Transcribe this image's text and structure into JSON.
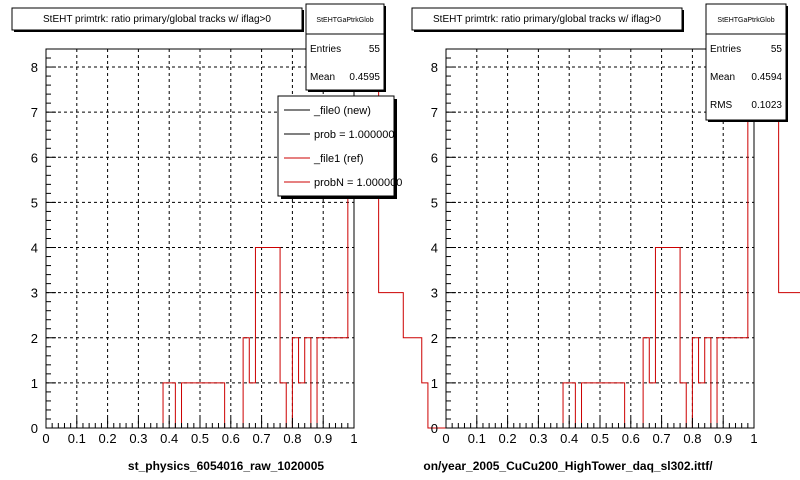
{
  "chart_data": [
    {
      "type": "histogram",
      "title": "StEHT primtrk: ratio primary/global tracks w/ iflag>0",
      "xlabel": "st_physics_6054016_raw_1020005",
      "ylabel": "",
      "xlim": [
        0,
        1
      ],
      "ylim": [
        0,
        8.4
      ],
      "xticks": [
        "0",
        "0.1",
        "0.2",
        "0.3",
        "0.4",
        "0.5",
        "0.6",
        "0.7",
        "0.8",
        "0.9",
        "1"
      ],
      "yticks": [
        "0",
        "1",
        "2",
        "3",
        "4",
        "5",
        "6",
        "7",
        "8"
      ],
      "grid": true,
      "bin_width": 0.02,
      "series": [
        {
          "name": "_file1 (ref)",
          "color": "#cc0000",
          "values": [
            0,
            0,
            0,
            0,
            0,
            0,
            0,
            0,
            0,
            0,
            0,
            0,
            0,
            0,
            0,
            0,
            0,
            0,
            0,
            1,
            1,
            0,
            1,
            1,
            1,
            1,
            1,
            1,
            1,
            0,
            0,
            0,
            2,
            1,
            4,
            4,
            4,
            4,
            1,
            0,
            2,
            1,
            2,
            0,
            2,
            2,
            2,
            2,
            2,
            7,
            8,
            8,
            8,
            8,
            3,
            3,
            3,
            3,
            2,
            2,
            2,
            1,
            0,
            0,
            0,
            0,
            0,
            0,
            0,
            0
          ]
        }
      ],
      "stats": {
        "name": "StEHTGaPtrkGlob",
        "entries_label": "Entries",
        "entries": "55",
        "mean_label": "Mean",
        "mean": "0.4595"
      },
      "legend": {
        "position": "top-right",
        "entries": [
          {
            "label": "_file0 (new)",
            "color": "#000000"
          },
          {
            "label": "prob = 1.000000",
            "color": "#000000"
          },
          {
            "label": "_file1 (ref)",
            "color": "#cc0000"
          },
          {
            "label": "probN = 1.000000",
            "color": "#cc0000"
          }
        ]
      }
    },
    {
      "type": "histogram",
      "title": "StEHT primtrk: ratio primary/global tracks w/ iflag>0",
      "xlabel": "on/year_2005_CuCu200_HighTower_daq_sl302.ittf/",
      "ylabel": "",
      "xlim": [
        0,
        1
      ],
      "ylim": [
        0,
        8.4
      ],
      "xticks": [
        "0",
        "0.1",
        "0.2",
        "0.3",
        "0.4",
        "0.5",
        "0.6",
        "0.7",
        "0.8",
        "0.9",
        "1"
      ],
      "yticks": [
        "0",
        "1",
        "2",
        "3",
        "4",
        "5",
        "6",
        "7",
        "8"
      ],
      "grid": true,
      "bin_width": 0.02,
      "series": [
        {
          "name": "",
          "color": "#cc0000",
          "values": [
            0,
            0,
            0,
            0,
            0,
            0,
            0,
            0,
            0,
            0,
            0,
            0,
            0,
            0,
            0,
            0,
            0,
            0,
            0,
            1,
            1,
            0,
            1,
            1,
            1,
            1,
            1,
            1,
            1,
            0,
            0,
            0,
            2,
            1,
            4,
            4,
            4,
            4,
            1,
            0,
            2,
            1,
            2,
            0,
            2,
            2,
            2,
            2,
            2,
            7,
            8,
            8,
            8,
            8,
            3,
            3,
            3,
            3,
            2,
            2,
            2,
            1,
            0,
            0,
            0,
            0,
            0,
            0,
            0,
            0
          ]
        }
      ],
      "stats": {
        "name": "StEHTGaPtrkGlob",
        "entries_label": "Entries",
        "entries": "55",
        "mean_label": "Mean",
        "mean": "0.4594",
        "rms_label": "RMS",
        "rms": "0.1023"
      }
    }
  ]
}
